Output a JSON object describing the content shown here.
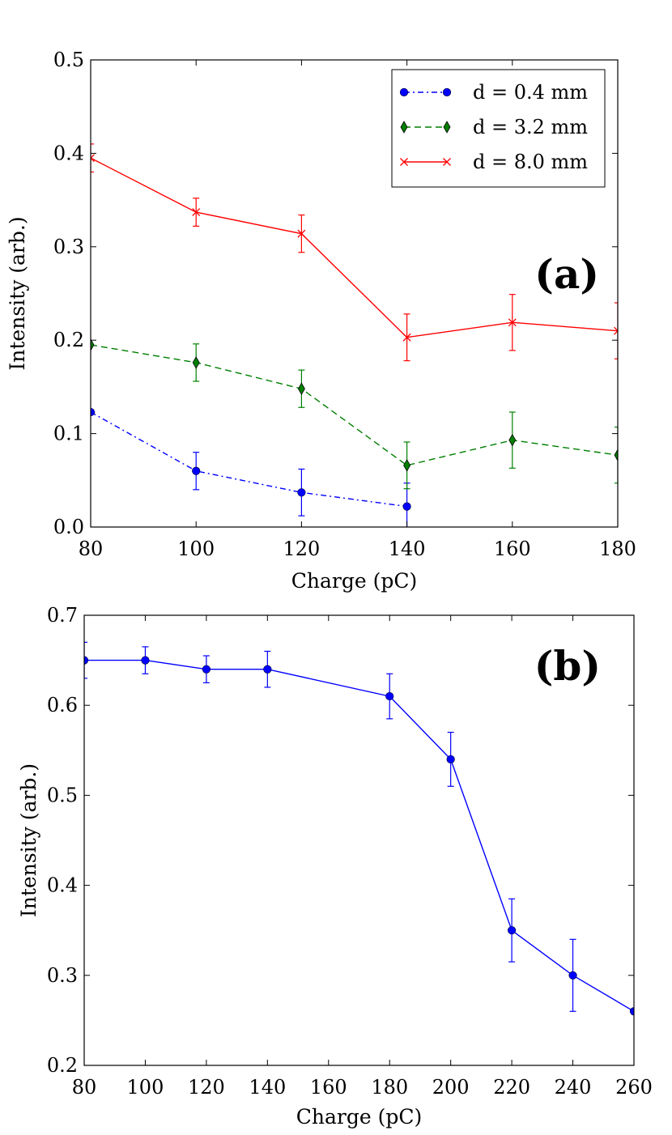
{
  "chart_data": [
    {
      "type": "line",
      "panel_label": "(a)",
      "title": "",
      "xlabel": "Charge (pC)",
      "ylabel": "Intensity (arb.)",
      "xlim": [
        80,
        180
      ],
      "ylim": [
        0.0,
        0.5
      ],
      "xticks": [
        80,
        100,
        120,
        140,
        160,
        180
      ],
      "yticks": [
        0.0,
        0.1,
        0.2,
        0.3,
        0.4,
        0.5
      ],
      "xtick_labels": [
        "80",
        "100",
        "120",
        "140",
        "160",
        "180"
      ],
      "ytick_labels": [
        "0.0",
        "0.1",
        "0.2",
        "0.3",
        "0.4",
        "0.5"
      ],
      "grid": false,
      "legend_position": "top-right",
      "series": [
        {
          "name": "d = 0.4 mm",
          "color": "#0000ff",
          "line_style": "dash-dot",
          "marker": "circle",
          "x": [
            80,
            100,
            120,
            140
          ],
          "y": [
            0.123,
            0.06,
            0.037,
            0.022
          ],
          "err": [
            0.0,
            0.02,
            0.025,
            0.025
          ]
        },
        {
          "name": "d = 3.2 mm",
          "color": "#007f00",
          "line_style": "dashed",
          "marker": "thin-diamond",
          "x": [
            80,
            100,
            120,
            140,
            160,
            180
          ],
          "y": [
            0.195,
            0.176,
            0.148,
            0.066,
            0.093,
            0.077
          ],
          "err": [
            0.0,
            0.02,
            0.02,
            0.025,
            0.03,
            0.03
          ]
        },
        {
          "name": "d = 8.0 mm",
          "color": "#ff0000",
          "line_style": "solid",
          "marker": "x",
          "x": [
            80,
            100,
            120,
            140,
            160,
            180
          ],
          "y": [
            0.395,
            0.337,
            0.314,
            0.203,
            0.219,
            0.21
          ],
          "err": [
            0.015,
            0.015,
            0.02,
            0.025,
            0.03,
            0.03
          ]
        }
      ]
    },
    {
      "type": "line",
      "panel_label": "(b)",
      "title": "",
      "xlabel": "Charge (pC)",
      "ylabel": "Intensity (arb.)",
      "xlim": [
        80,
        260
      ],
      "ylim": [
        0.2,
        0.7
      ],
      "xticks": [
        80,
        100,
        120,
        140,
        160,
        180,
        200,
        220,
        240,
        260
      ],
      "yticks": [
        0.2,
        0.3,
        0.4,
        0.5,
        0.6,
        0.7
      ],
      "xtick_labels": [
        "80",
        "100",
        "120",
        "140",
        "160",
        "180",
        "200",
        "220",
        "240",
        "260"
      ],
      "ytick_labels": [
        "0.2",
        "0.3",
        "0.4",
        "0.5",
        "0.6",
        "0.7"
      ],
      "grid": false,
      "legend_position": "none",
      "series": [
        {
          "name": "",
          "color": "#0000ff",
          "line_style": "solid",
          "marker": "circle",
          "x": [
            80,
            100,
            120,
            140,
            180,
            200,
            220,
            240,
            260
          ],
          "y": [
            0.65,
            0.65,
            0.64,
            0.64,
            0.61,
            0.54,
            0.35,
            0.3,
            0.26
          ],
          "err": [
            0.02,
            0.015,
            0.015,
            0.02,
            0.025,
            0.03,
            0.035,
            0.04,
            0.0
          ]
        }
      ]
    }
  ]
}
